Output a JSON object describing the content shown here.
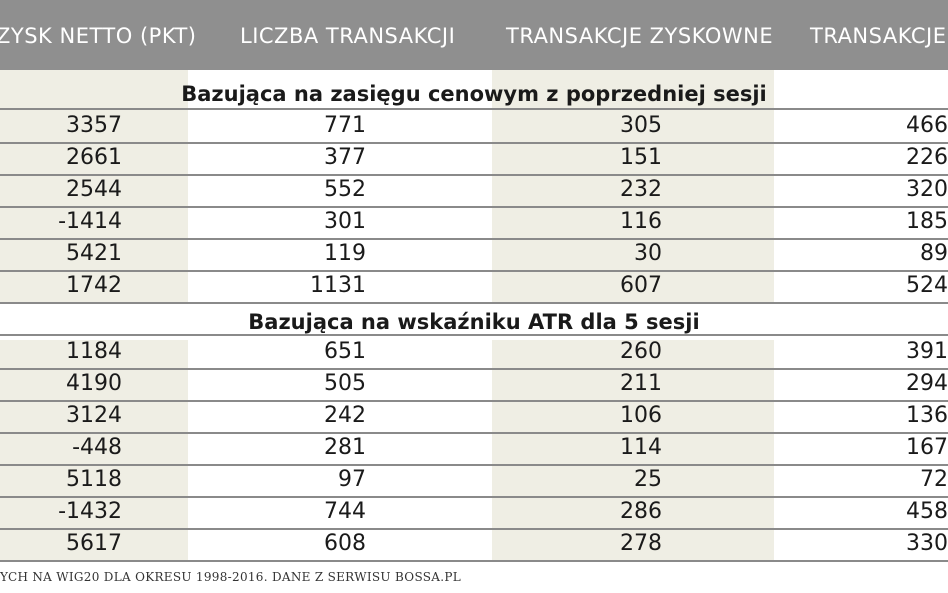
{
  "header": {
    "col1": "ZYSK NETTO (PKT)",
    "col2": "LICZBA TRANSAKCJI",
    "col3": "TRANSAKCJE ZYSKOWNE",
    "col4": "TRANSAKCJE S"
  },
  "sections": [
    {
      "title": "Bazująca na zasięgu cenowym z poprzedniej sesji",
      "rows": [
        [
          "3357",
          "771",
          "305",
          "466"
        ],
        [
          "2661",
          "377",
          "151",
          "226"
        ],
        [
          "2544",
          "552",
          "232",
          "320"
        ],
        [
          "-1414",
          "301",
          "116",
          "185"
        ],
        [
          "5421",
          "119",
          "30",
          "89"
        ],
        [
          "1742",
          "1131",
          "607",
          "524"
        ]
      ]
    },
    {
      "title": "Bazująca na wskaźniku ATR dla 5 sesji",
      "rows": [
        [
          "1184",
          "651",
          "260",
          "391"
        ],
        [
          "4190",
          "505",
          "211",
          "294"
        ],
        [
          "3124",
          "242",
          "106",
          "136"
        ],
        [
          "-448",
          "281",
          "114",
          "167"
        ],
        [
          "5118",
          "97",
          "25",
          "72"
        ],
        [
          "-1432",
          "744",
          "286",
          "458"
        ],
        [
          "5617",
          "608",
          "278",
          "330"
        ]
      ]
    }
  ],
  "footer": {
    "note": "YCH NA WIG20 DLA OKRESU 1998-2016. DANE Z SERWISU BOSSA.PL"
  },
  "colors": {
    "header_bg": "#8f8f8f",
    "shade": "#efeee4",
    "rule": "#8a8a8a"
  }
}
